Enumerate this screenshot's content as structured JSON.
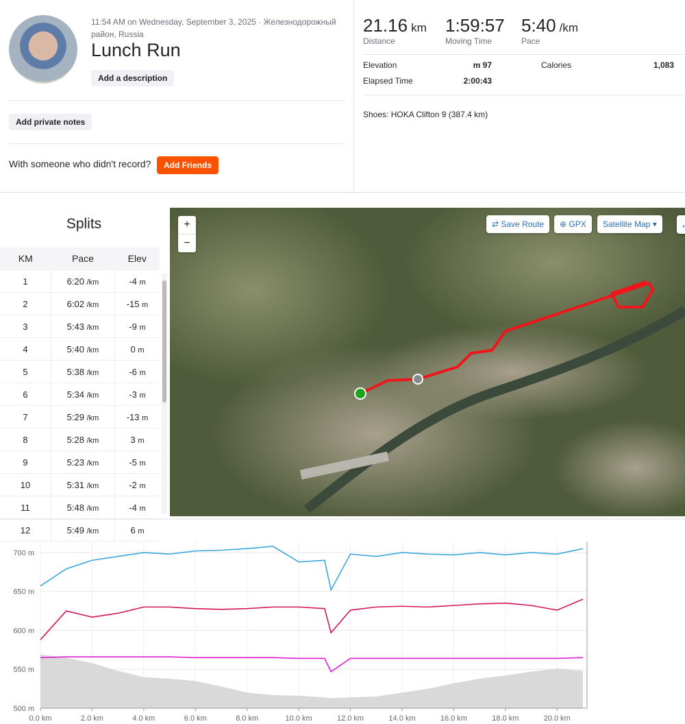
{
  "header": {
    "timestamp": "11:54 AM on Wednesday, September 3, 2025 · Железнодорожный район, Russia",
    "title": "Lunch Run",
    "add_description": "Add a description",
    "add_notes": "Add private notes",
    "friends_prompt": "With someone who didn't record?",
    "add_friends": "Add Friends"
  },
  "stats": [
    {
      "value": "21.16",
      "unit": "km",
      "label": "Distance"
    },
    {
      "value": "1:59:57",
      "label": "Moving Time"
    },
    {
      "value": "5:40",
      "unit": "/km",
      "label": "Pace"
    }
  ],
  "details": {
    "rows": [
      [
        "Elevation",
        "97 m",
        "Calories",
        "1,083"
      ],
      [
        "Elapsed Time",
        "2:00:43"
      ]
    ],
    "shoes": "Shoes: HOKA Clifton 9 (387.4 km)"
  },
  "splits": {
    "title": "Splits",
    "columns": [
      "KM",
      "Pace",
      "Elev"
    ],
    "pace_unit": "/km",
    "elev_unit": "m",
    "rows": [
      [
        1,
        "6:20",
        -4
      ],
      [
        2,
        "6:02",
        -15
      ],
      [
        3,
        "5:43",
        -9
      ],
      [
        4,
        "5:40",
        0
      ],
      [
        5,
        "5:38",
        -6
      ],
      [
        6,
        "5:34",
        -3
      ],
      [
        7,
        "5:29",
        -13
      ],
      [
        8,
        "5:28",
        3
      ],
      [
        9,
        "5:23",
        -5
      ],
      [
        10,
        "5:31",
        -2
      ],
      [
        11,
        "5:48",
        -4
      ],
      [
        12,
        "5:49",
        6
      ]
    ]
  },
  "map": {
    "zoom_in": "+",
    "zoom_out": "−",
    "save_route": "Save Route",
    "gpx": "GPX",
    "map_type": "Satellite Map"
  },
  "chart_data": {
    "type": "line",
    "x": [
      0,
      1,
      2,
      3,
      4,
      5,
      6,
      7,
      8,
      9,
      10,
      11,
      11.25,
      12,
      13,
      14,
      15,
      16,
      17,
      18,
      19,
      20,
      21
    ],
    "xlim": [
      0,
      21.16
    ],
    "ylim": [
      500,
      714
    ],
    "xticks": [
      {
        "value": 0,
        "label": "0.0 km"
      },
      {
        "value": 2,
        "label": "2.0 km"
      },
      {
        "value": 4,
        "label": "4.0 km"
      },
      {
        "value": 6,
        "label": "6.0 km"
      },
      {
        "value": 8,
        "label": "8.0 km"
      },
      {
        "value": 10,
        "label": "10.0 km"
      },
      {
        "value": 12,
        "label": "12.0 km"
      },
      {
        "value": 14,
        "label": "14.0 km"
      },
      {
        "value": 16,
        "label": "16.0 km"
      },
      {
        "value": 18,
        "label": "18.0 km"
      },
      {
        "value": 20,
        "label": "20.0 km"
      }
    ],
    "yticks": [
      {
        "value": 500,
        "label": "500 m"
      },
      {
        "value": 550,
        "label": "550 m"
      },
      {
        "value": 600,
        "label": "600 m"
      },
      {
        "value": 650,
        "label": "650 m"
      },
      {
        "value": 700,
        "label": "700 m"
      }
    ],
    "grid": true,
    "area": {
      "color": "#d9d9d9",
      "values": [
        569,
        565,
        558,
        548,
        540,
        538,
        535,
        528,
        520,
        517,
        516,
        514,
        513,
        514,
        515,
        520,
        525,
        532,
        538,
        542,
        547,
        551,
        548
      ]
    },
    "series": [
      {
        "color": "#3aa7dc",
        "values": [
          657,
          679,
          690,
          695,
          700,
          698,
          702,
          703,
          705,
          708,
          688,
          690,
          652,
          698,
          695,
          700,
          698,
          697,
          700,
          697,
          700,
          698,
          705
        ]
      },
      {
        "color": "#d4145a",
        "values": [
          588,
          625,
          617,
          622,
          630,
          630,
          628,
          627,
          628,
          630,
          630,
          628,
          597,
          626,
          630,
          631,
          630,
          632,
          634,
          635,
          632,
          626,
          640
        ]
      },
      {
        "color": "#e01ed2",
        "values": [
          565,
          566,
          566,
          566,
          566,
          566,
          565,
          565,
          565,
          565,
          564,
          564,
          547,
          564,
          564,
          564,
          564,
          564,
          564,
          564,
          564,
          564,
          565
        ]
      }
    ]
  }
}
